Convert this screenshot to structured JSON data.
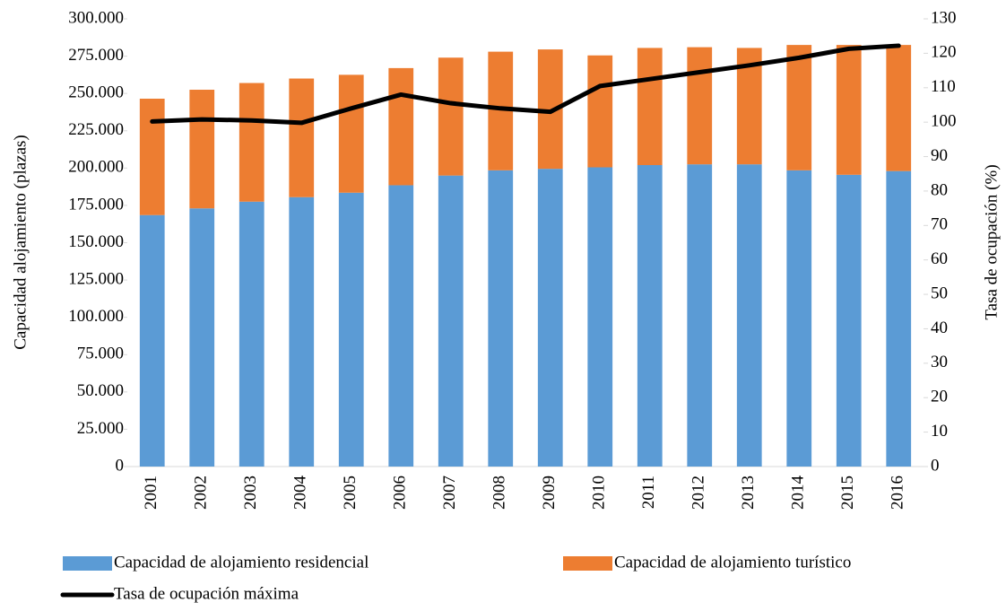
{
  "chart_data": {
    "type": "bar",
    "y_label": "Capacidad alojamiento (plazas)",
    "y2_label": "Tasa de ocupación (%)",
    "categories": [
      "2001",
      "2002",
      "2003",
      "2004",
      "2005",
      "2006",
      "2007",
      "2008",
      "2009",
      "2010",
      "2011",
      "2012",
      "2013",
      "2014",
      "2015",
      "2016"
    ],
    "stacked": true,
    "series": [
      {
        "name": "Capacidad de alojamiento residencial",
        "color": "#5b9bd5",
        "type": "bar",
        "values": [
          168500,
          173000,
          177500,
          180500,
          183500,
          188500,
          195000,
          198500,
          199500,
          200500,
          202000,
          202500,
          202500,
          198500,
          195500,
          198000
        ]
      },
      {
        "name": "Capacidad de alojamiento turístico",
        "color": "#ed7d31",
        "type": "bar",
        "values": [
          78000,
          79500,
          79500,
          79500,
          79000,
          78500,
          79000,
          79500,
          80000,
          75000,
          78500,
          78500,
          78000,
          84000,
          87000,
          84500
        ]
      },
      {
        "name": "Tasa de ocupación máxima",
        "color": "#000000",
        "type": "line",
        "axis": "y2",
        "values": [
          100.2,
          100.8,
          100.5,
          99.8,
          104,
          108,
          105.5,
          104,
          103,
          110.5,
          112.5,
          114.5,
          116.5,
          118.7,
          121.3,
          122.2
        ]
      }
    ],
    "ylim": [
      0,
      300000
    ],
    "yticks": [
      0,
      {
        "value": 25000,
        "label": "25.000"
      },
      {
        "value": 50000,
        "label": "50.000"
      },
      {
        "value": 75000,
        "label": "75.000"
      },
      {
        "value": 100000,
        "label": "100.000"
      },
      {
        "value": 125000,
        "label": "125.000"
      },
      {
        "value": 150000,
        "label": "150.000"
      },
      {
        "value": 175000,
        "label": "175.000"
      },
      {
        "value": 200000,
        "label": "200.000"
      },
      {
        "value": 225000,
        "label": "225.000"
      },
      {
        "value": 250000,
        "label": "250.000"
      },
      {
        "value": 275000,
        "label": "275.000"
      },
      {
        "value": 300000,
        "label": "300.000"
      }
    ],
    "y2lim": [
      0,
      130
    ],
    "y2ticks": [
      0,
      10,
      20,
      30,
      40,
      50,
      60,
      70,
      80,
      90,
      100,
      110,
      120,
      130
    ]
  }
}
